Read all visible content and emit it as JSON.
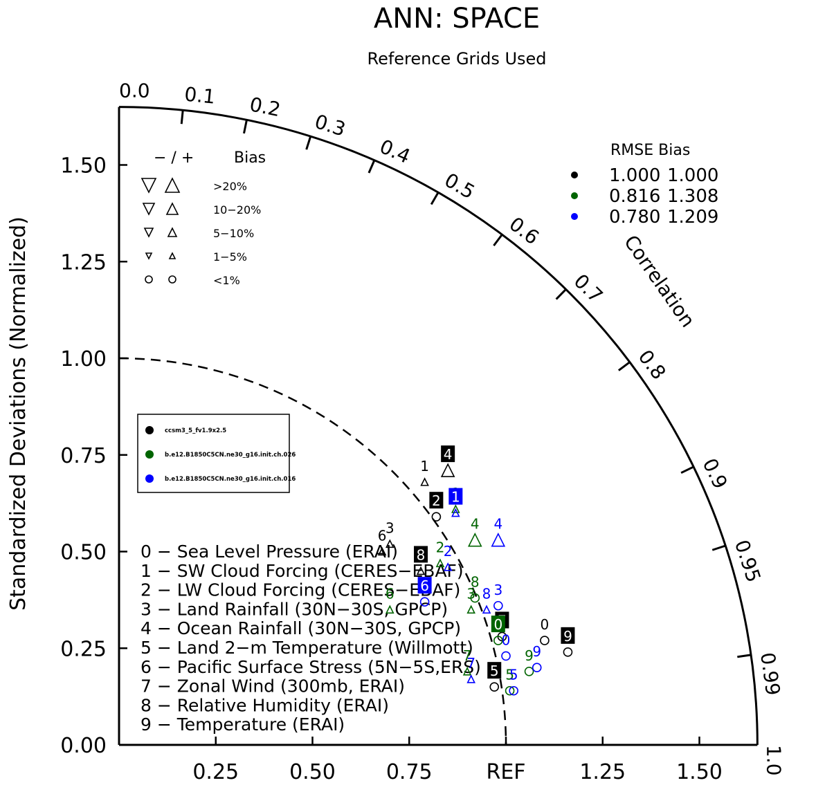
{
  "chart_data": {
    "type": "scatter",
    "diagram": "taylor",
    "title": "ANN: SPACE",
    "subtitle": "Reference Grids Used",
    "ylabel": "Standardized Deviations (Normalized)",
    "arc_label": "Correlation",
    "ref_label": "REF",
    "std_range": [
      0,
      1.65
    ],
    "std_ticks": [
      "0.00",
      "0.25",
      "0.50",
      "0.75",
      "1.00",
      "1.25",
      "1.50"
    ],
    "x_ticks": [
      "0.25",
      "0.50",
      "0.75",
      "REF",
      "1.25",
      "1.50"
    ],
    "correlation_ticks": [
      "0.0",
      "0.1",
      "0.2",
      "0.3",
      "0.4",
      "0.5",
      "0.6",
      "0.7",
      "0.8",
      "0.9",
      "0.95",
      "0.99",
      "1.0"
    ],
    "bias_legend": {
      "header_sign": "− / +",
      "header_label": "Bias",
      "rows": [
        ">20%",
        "10−20%",
        "5−10%",
        "1−5%",
        "<1%"
      ]
    },
    "stats_legend": {
      "header": "RMSE  Bias",
      "rows": [
        {
          "rmse": "1.000",
          "bias": "1.000",
          "color": "#000000"
        },
        {
          "rmse": "0.816",
          "bias": "1.308",
          "color": "#006400"
        },
        {
          "rmse": "0.780",
          "bias": "1.209",
          "color": "#0000ff"
        }
      ]
    },
    "series": [
      {
        "name": "ccsm3_5_fv1.9x2.5",
        "color": "#000000",
        "points": [
          {
            "id": "0",
            "x": 1.1,
            "y": 0.27,
            "marker": "circle"
          },
          {
            "id": "1",
            "x": 0.79,
            "y": 0.68,
            "marker": "up-small"
          },
          {
            "id": "2",
            "x": 0.82,
            "y": 0.59,
            "marker": "circle"
          },
          {
            "id": "3",
            "x": 0.7,
            "y": 0.52,
            "marker": "up-small"
          },
          {
            "id": "4",
            "x": 0.85,
            "y": 0.71,
            "marker": "up-large"
          },
          {
            "id": "5",
            "x": 0.97,
            "y": 0.15,
            "marker": "circle"
          },
          {
            "id": "6",
            "x": 0.68,
            "y": 0.5,
            "marker": "up-small"
          },
          {
            "id": "7",
            "x": 0.99,
            "y": 0.28,
            "marker": "circle"
          },
          {
            "id": "8",
            "x": 0.78,
            "y": 0.45,
            "marker": "up-small"
          },
          {
            "id": "9",
            "x": 1.16,
            "y": 0.24,
            "marker": "circle"
          }
        ]
      },
      {
        "name": "b.e12.B1850C5CN.ne30_g16.init.ch.026",
        "color": "#006400",
        "points": [
          {
            "id": "0",
            "x": 0.98,
            "y": 0.27,
            "marker": "circle"
          },
          {
            "id": "1",
            "x": 0.87,
            "y": 0.61,
            "marker": "up-small"
          },
          {
            "id": "2",
            "x": 0.83,
            "y": 0.47,
            "marker": "up-small"
          },
          {
            "id": "3",
            "x": 0.91,
            "y": 0.35,
            "marker": "up-small"
          },
          {
            "id": "4",
            "x": 0.92,
            "y": 0.53,
            "marker": "up-large"
          },
          {
            "id": "5",
            "x": 1.01,
            "y": 0.14,
            "marker": "circle"
          },
          {
            "id": "6",
            "x": 0.7,
            "y": 0.35,
            "marker": "up-small"
          },
          {
            "id": "7",
            "x": 0.9,
            "y": 0.19,
            "marker": "up-small"
          },
          {
            "id": "8",
            "x": 0.92,
            "y": 0.38,
            "marker": "circle"
          },
          {
            "id": "9",
            "x": 1.06,
            "y": 0.19,
            "marker": "circle"
          }
        ]
      },
      {
        "name": "b.e12.B1850C5CN.ne30_g16.init.ch.016",
        "color": "#0000ff",
        "points": [
          {
            "id": "0",
            "x": 1.0,
            "y": 0.23,
            "marker": "circle"
          },
          {
            "id": "1",
            "x": 0.87,
            "y": 0.6,
            "marker": "up-small"
          },
          {
            "id": "2",
            "x": 0.85,
            "y": 0.46,
            "marker": "up-small"
          },
          {
            "id": "3",
            "x": 0.98,
            "y": 0.36,
            "marker": "circle"
          },
          {
            "id": "4",
            "x": 0.98,
            "y": 0.53,
            "marker": "up-large"
          },
          {
            "id": "5",
            "x": 1.02,
            "y": 0.14,
            "marker": "circle"
          },
          {
            "id": "6",
            "x": 0.79,
            "y": 0.37,
            "marker": "circle"
          },
          {
            "id": "7",
            "x": 0.91,
            "y": 0.17,
            "marker": "up-small"
          },
          {
            "id": "8",
            "x": 0.95,
            "y": 0.35,
            "marker": "up-small"
          },
          {
            "id": "9",
            "x": 1.08,
            "y": 0.2,
            "marker": "circle"
          }
        ]
      }
    ],
    "variable_list": [
      "0 − Sea Level Pressure (ERAI)",
      "1 − SW Cloud Forcing (CERES−EBAF)",
      "2 − LW Cloud Forcing (CERES−EBAF)",
      "3 − Land Rainfall (30N−30S, GPCP)",
      "4 − Ocean Rainfall (30N−30S, GPCP)",
      "5 − Land 2−m Temperature (Willmott)",
      "6 − Pacific Surface Stress (5N−5S,ERS)",
      "7 − Zonal Wind (300mb, ERAI)",
      "8 − Relative Humidity (ERAI)",
      "9 − Temperature (ERAI)"
    ]
  }
}
